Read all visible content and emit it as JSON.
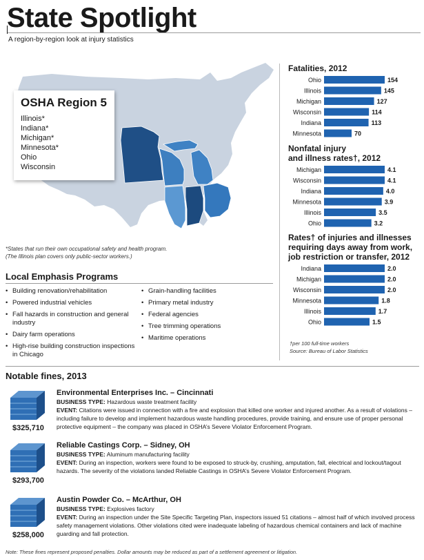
{
  "header": {
    "title": "State Spotlight",
    "subtitle": "A region-by-region look at injury statistics"
  },
  "region": {
    "title": "OSHA Region 5",
    "states": [
      "Illinois*",
      "Indiana*",
      "Michigan*",
      "Minnesota*",
      "Ohio",
      "Wisconsin"
    ]
  },
  "map_footnote": {
    "line1": "*States that run their own occupational safety and health program.",
    "line2": "(The Illinois plan covers only public-sector workers.)"
  },
  "colors": {
    "map_base": "#c9d3e0",
    "minnesota": "#1f4f86",
    "wisconsin": "#3d7fc0",
    "michigan": "#3f82c4",
    "illinois": "#5b98d2",
    "indiana": "#1c4a7e",
    "ohio": "#3478bd",
    "bar": "#1f63b0"
  },
  "local_emphasis": {
    "title": "Local Emphasis Programs",
    "col1": [
      "Building renovation/rehabilitation",
      "Powered industrial vehicles",
      "Fall hazards in construction and general industry",
      "Dairy farm operations",
      "High-rise building construction inspections in Chicago"
    ],
    "col2": [
      "Grain-handling facilities",
      "Primary metal industry",
      "Federal agencies",
      "Tree trimming operations",
      "Maritime operations"
    ]
  },
  "chart_data": [
    {
      "type": "bar",
      "orientation": "horizontal",
      "title": "Fatalities, 2012",
      "categories": [
        "Ohio",
        "Illinois",
        "Michigan",
        "Wisconsin",
        "Indiana",
        "Minnesota"
      ],
      "values": [
        154,
        145,
        127,
        114,
        113,
        70
      ],
      "value_labels": [
        "154",
        "145",
        "127",
        "114",
        "113",
        "70"
      ],
      "xlim": [
        0,
        154
      ]
    },
    {
      "type": "bar",
      "orientation": "horizontal",
      "title_line1": "Nonfatal injury",
      "title_line2": "and illness rates†, 2012",
      "categories": [
        "Michigan",
        "Wisconsin",
        "Indiana",
        "Minnesota",
        "Illinois",
        "Ohio"
      ],
      "values": [
        4.1,
        4.1,
        4.0,
        3.9,
        3.5,
        3.2
      ],
      "value_labels": [
        "4.1",
        "4.1",
        "4.0",
        "3.9",
        "3.5",
        "3.2"
      ],
      "xlim": [
        0,
        4.1
      ]
    },
    {
      "type": "bar",
      "orientation": "horizontal",
      "title_line1": "Rates† of injuries and illnesses",
      "title_line2": "requiring days away from work,",
      "title_line3": "job restriction or transfer, 2012",
      "categories": [
        "Indiana",
        "Michigan",
        "Wisconsin",
        "Minnesota",
        "Illinois",
        "Ohio"
      ],
      "values": [
        2.0,
        2.0,
        2.0,
        1.8,
        1.7,
        1.5
      ],
      "value_labels": [
        "2.0",
        "2.0",
        "2.0",
        "1.8",
        "1.7",
        "1.5"
      ],
      "xlim": [
        0,
        2.0
      ]
    }
  ],
  "rate_notes": {
    "line1": "†per 100 full-time workers",
    "line2": "Source: Bureau of Labor Statistics"
  },
  "fines": {
    "title": "Notable fines, 2013",
    "items": [
      {
        "amount": "$325,710",
        "name": "Environmental Enterprises Inc. – Cincinnati",
        "business_label": "BUSINESS TYPE:",
        "business": "Hazardous waste treatment facility",
        "event_label": "EVENT:",
        "event": "Citations were issued in connection with a fire and explosion that killed one worker and injured another. As a result of violations – including failure to develop and implement hazardous waste handling procedures, provide training, and ensure use of proper personal protective equipment – the company was placed in OSHA’s Severe Violator Enforcement Program."
      },
      {
        "amount": "$293,700",
        "name": "Reliable Castings Corp. – Sidney, OH",
        "business_label": "BUSINESS TYPE:",
        "business": "Aluminum manufacturing facility",
        "event_label": "EVENT:",
        "event": "During an inspection, workers were found to be exposed to struck-by, crushing, amputation, fall, electrical and lockout/tagout hazards. The severity of the violations landed Reliable Castings in OSHA’s Severe Violator Enforcement Program."
      },
      {
        "amount": "$258,000",
        "name": "Austin Powder Co. – McArthur, OH",
        "business_label": "BUSINESS TYPE:",
        "business": "Explosives factory",
        "event_label": "EVENT:",
        "event": "During an inspection under the Site Specific Targeting Plan, inspectors issued 51 citations – almost half of which involved process safety management violations. Other violations cited were inadequate labeling of hazardous chemical containers and lack of machine guarding and fall protection."
      }
    ]
  },
  "bottom_note": "Note: These fines represent proposed penalties. Dollar amounts may be reduced as part of a settlement agreement or litigation."
}
